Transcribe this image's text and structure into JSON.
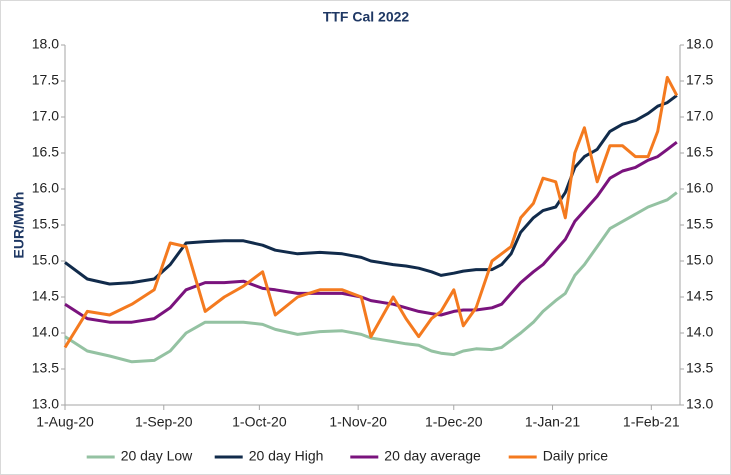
{
  "chart_data": {
    "type": "line",
    "title": "TTF Cal 2022",
    "ylabel": "EUR/MWh",
    "x": [
      "1-Aug-20",
      "8-Aug-20",
      "15-Aug-20",
      "22-Aug-20",
      "29-Aug-20",
      "3-Sep-20",
      "8-Sep-20",
      "14-Sep-20",
      "20-Sep-20",
      "26-Sep-20",
      "2-Oct-20",
      "6-Oct-20",
      "13-Oct-20",
      "20-Oct-20",
      "27-Oct-20",
      "2-Nov-20",
      "5-Nov-20",
      "12-Nov-20",
      "16-Nov-20",
      "20-Nov-20",
      "24-Nov-20",
      "27-Nov-20",
      "1-Dec-20",
      "4-Dec-20",
      "8-Dec-20",
      "13-Dec-20",
      "16-Dec-20",
      "19-Dec-20",
      "22-Dec-20",
      "26-Dec-20",
      "29-Dec-20",
      "2-Jan-21",
      "5-Jan-21",
      "8-Jan-21",
      "11-Jan-21",
      "15-Jan-21",
      "19-Jan-21",
      "23-Jan-21",
      "27-Jan-21",
      "31-Jan-21",
      "3-Feb-21",
      "6-Feb-21",
      "9-Feb-21"
    ],
    "series": [
      {
        "name": "20 day Low",
        "color": "#94c2a2",
        "values": [
          13.95,
          13.75,
          13.68,
          13.6,
          13.62,
          13.75,
          14.0,
          14.15,
          14.15,
          14.15,
          14.12,
          14.05,
          13.98,
          14.02,
          14.03,
          13.98,
          13.93,
          13.88,
          13.85,
          13.83,
          13.75,
          13.72,
          13.7,
          13.75,
          13.78,
          13.77,
          13.8,
          13.9,
          14.0,
          14.15,
          14.3,
          14.45,
          14.55,
          14.8,
          14.95,
          15.2,
          15.45,
          15.55,
          15.65,
          15.75,
          15.8,
          15.85,
          15.95
        ]
      },
      {
        "name": "20 day High",
        "color": "#112b4b",
        "values": [
          14.98,
          14.75,
          14.68,
          14.7,
          14.75,
          14.95,
          15.25,
          15.27,
          15.28,
          15.28,
          15.22,
          15.15,
          15.1,
          15.12,
          15.1,
          15.05,
          15.0,
          14.95,
          14.93,
          14.9,
          14.85,
          14.8,
          14.83,
          14.86,
          14.88,
          14.88,
          14.95,
          15.1,
          15.4,
          15.6,
          15.7,
          15.75,
          15.95,
          16.3,
          16.45,
          16.55,
          16.8,
          16.9,
          16.95,
          17.05,
          17.15,
          17.2,
          17.3
        ]
      },
      {
        "name": "20 day average",
        "color": "#7a137d",
        "values": [
          14.4,
          14.2,
          14.15,
          14.15,
          14.2,
          14.35,
          14.6,
          14.7,
          14.7,
          14.72,
          14.62,
          14.6,
          14.55,
          14.55,
          14.55,
          14.5,
          14.45,
          14.4,
          14.35,
          14.3,
          14.27,
          14.25,
          14.3,
          14.32,
          14.32,
          14.35,
          14.4,
          14.55,
          14.7,
          14.85,
          14.95,
          15.15,
          15.3,
          15.55,
          15.7,
          15.9,
          16.15,
          16.25,
          16.3,
          16.4,
          16.45,
          16.55,
          16.65
        ]
      },
      {
        "name": "Daily price",
        "color": "#f47a1f",
        "values": [
          13.8,
          14.3,
          14.25,
          14.4,
          14.6,
          15.25,
          15.2,
          14.3,
          14.5,
          14.65,
          14.85,
          14.25,
          14.5,
          14.6,
          14.6,
          14.5,
          13.95,
          14.5,
          14.2,
          13.95,
          14.2,
          14.3,
          14.6,
          14.1,
          14.35,
          15.0,
          15.1,
          15.2,
          15.6,
          15.8,
          16.15,
          16.1,
          15.6,
          16.5,
          16.85,
          16.1,
          16.6,
          16.6,
          16.45,
          16.45,
          16.8,
          17.55,
          17.3
        ]
      }
    ],
    "xlim": [
      "1-Aug-20",
      "10-Feb-21"
    ],
    "xticks": [
      "1-Aug-20",
      "1-Sep-20",
      "1-Oct-20",
      "1-Nov-20",
      "1-Dec-20",
      "1-Jan-21",
      "1-Feb-21"
    ],
    "ylim": [
      13,
      18
    ],
    "yticks": [
      {
        "value": 13,
        "label": "13.0"
      },
      {
        "value": 13.5,
        "label": "13.5"
      },
      {
        "value": 14,
        "label": "14.0"
      },
      {
        "value": 14.5,
        "label": "14.5"
      },
      {
        "value": 15,
        "label": "15.0"
      },
      {
        "value": 15.5,
        "label": "15.5"
      },
      {
        "value": 16,
        "label": "16.0"
      },
      {
        "value": 16.5,
        "label": "16.5"
      },
      {
        "value": 17,
        "label": "17.0"
      },
      {
        "value": 17.5,
        "label": "17.5"
      },
      {
        "value": 18,
        "label": "18.0"
      }
    ],
    "y2lim": [
      13,
      18
    ],
    "y2ticks": [
      {
        "value": 13,
        "label": "13.0"
      },
      {
        "value": 13.5,
        "label": "13.5"
      },
      {
        "value": 14,
        "label": "14.0"
      },
      {
        "value": 14.5,
        "label": "14.5"
      },
      {
        "value": 15,
        "label": "15.0"
      },
      {
        "value": 15.5,
        "label": "15.5"
      },
      {
        "value": 16,
        "label": "16.0"
      },
      {
        "value": 16.5,
        "label": "16.5"
      },
      {
        "value": 17,
        "label": "17.0"
      },
      {
        "value": 17.5,
        "label": "17.5"
      },
      {
        "value": 18,
        "label": "18.0"
      }
    ],
    "grid": false,
    "legend": "bottom"
  }
}
